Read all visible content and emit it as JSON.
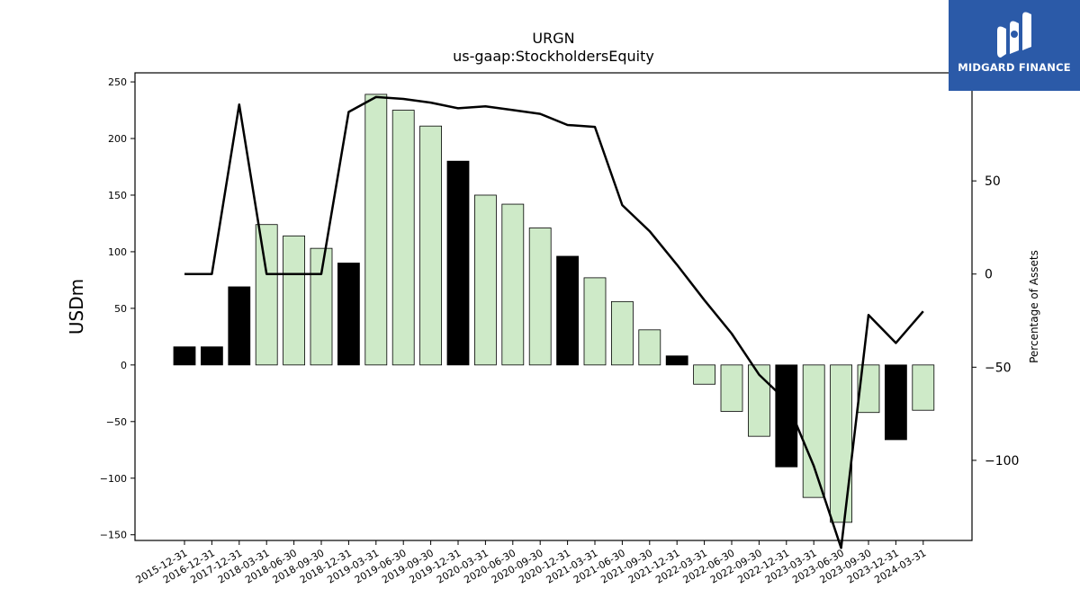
{
  "chart_data": {
    "type": "bar",
    "title": "URGN",
    "subtitle": "us-gaap:StockholdersEquity",
    "ylabel": "USDm",
    "y2label": "Percentage of Assets",
    "ylim": [
      -155,
      258
    ],
    "y2lim": [
      -143,
      108
    ],
    "yticks": [
      250,
      200,
      150,
      100,
      50,
      0,
      -50,
      -100,
      -150
    ],
    "y2ticks": [
      50,
      0,
      -50,
      -100
    ],
    "grid": false,
    "categories": [
      "2015-12-31",
      "2016-12-31",
      "2017-12-31",
      "2018-03-31",
      "2018-06-30",
      "2018-09-30",
      "2018-12-31",
      "2019-03-31",
      "2019-06-30",
      "2019-09-30",
      "2019-12-31",
      "2020-03-31",
      "2020-06-30",
      "2020-09-30",
      "2020-12-31",
      "2021-03-31",
      "2021-06-30",
      "2021-09-30",
      "2021-12-31",
      "2022-03-31",
      "2022-06-30",
      "2022-09-30",
      "2022-12-31",
      "2023-03-31",
      "2023-06-30",
      "2023-09-30",
      "2023-12-31",
      "2024-03-31"
    ],
    "values": [
      16,
      16,
      69,
      124,
      114,
      103,
      90,
      239,
      225,
      211,
      180,
      150,
      142,
      121,
      96,
      77,
      56,
      31,
      8,
      -17,
      -41,
      -63,
      -90,
      -117,
      -139,
      -42,
      -66,
      -40
    ],
    "annual": [
      true,
      true,
      true,
      false,
      false,
      false,
      true,
      false,
      false,
      false,
      true,
      false,
      false,
      false,
      true,
      false,
      false,
      false,
      true,
      false,
      false,
      false,
      true,
      false,
      false,
      false,
      true,
      false
    ],
    "line_series": {
      "values": [
        0,
        0,
        91,
        0,
        0,
        0,
        87,
        95,
        94,
        92,
        89,
        90,
        88,
        86,
        80,
        79,
        37,
        23,
        5,
        -14,
        -32,
        -54,
        -68,
        -103,
        -147,
        -22,
        -37,
        -20
      ]
    },
    "colors": {
      "annual_bar": "#000000",
      "quarter_bar": "#ceeac8",
      "line": "#000000"
    }
  },
  "logo": {
    "text": "MIDGARD FINANCE",
    "bg": "#2b5aa8"
  }
}
